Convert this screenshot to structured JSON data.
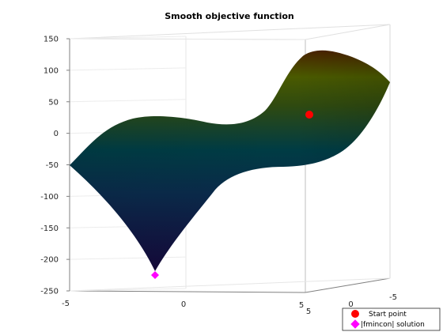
{
  "chart_data": {
    "type": "surface",
    "title": "Smooth objective function",
    "xlabel": "",
    "ylabel": "",
    "zlabel": "",
    "xlim": [
      -5,
      5
    ],
    "ylim": [
      -5,
      5
    ],
    "zlim": [
      -250,
      150
    ],
    "z_ticks": [
      "150",
      "100",
      "50",
      "0",
      "-50",
      "-100",
      "-150",
      "-200",
      "-250"
    ],
    "x_ticks": [
      "-5",
      "0",
      "5"
    ],
    "y_ticks": [
      "5",
      "0",
      "-5"
    ],
    "grid": true,
    "surface_colormap": [
      "#15083a",
      "#003c44",
      "#4a5a00",
      "#4a2200"
    ],
    "series": [
      {
        "name": "Start point",
        "type": "scatter",
        "color": "#ff0000",
        "marker": "circle",
        "points": [
          {
            "x": 3.5,
            "y": 0.5,
            "z": 30
          }
        ]
      },
      {
        "name": "|fmincon| solution",
        "type": "scatter",
        "color": "#ff00ff",
        "marker": "diamond",
        "points": [
          {
            "x": -1.3,
            "y": 0,
            "z": -227
          }
        ]
      }
    ],
    "legend": {
      "placement": "bottom-right",
      "entries": [
        "Start point",
        "|fmincon| solution"
      ]
    }
  }
}
